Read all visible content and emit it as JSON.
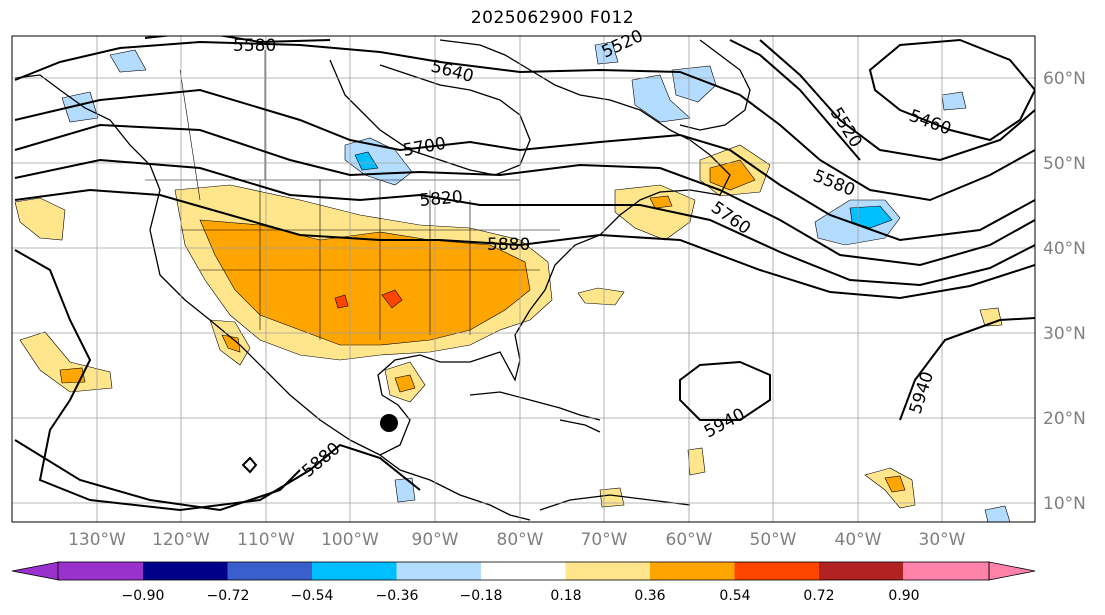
{
  "title": "2025062900 F012",
  "colors": {
    "grid": "#a0a0a0",
    "coast": "#000000",
    "contour": "#000000",
    "pos_1": "#ffe68c",
    "pos_2": "#ffa500",
    "pos_3": "#ff4500",
    "neg_1": "#b4dcff",
    "neg_2": "#00bfff"
  },
  "lon_labels": [
    "130°W",
    "120°W",
    "110°W",
    "100°W",
    "90°W",
    "80°W",
    "70°W",
    "60°W",
    "50°W",
    "40°W",
    "30°W"
  ],
  "lat_labels": [
    "60°N",
    "50°N",
    "40°N",
    "30°N",
    "20°N",
    "10°N"
  ],
  "contour_labels": [
    "5580",
    "5640",
    "5520",
    "5460",
    "5700",
    "5520",
    "5580",
    "5820",
    "5880",
    "5760",
    "5940",
    "5940",
    "5880"
  ],
  "colorbar": {
    "colors": [
      "#9932cc",
      "#00008b",
      "#3a5fcd",
      "#00bfff",
      "#b4dcff",
      "#ffffff",
      "#ffe68c",
      "#ffa500",
      "#ff4500",
      "#b22222",
      "#ff82ab"
    ],
    "ticks": [
      "−0.90",
      "−0.72",
      "−0.54",
      "−0.36",
      "−0.18",
      "0.18",
      "0.36",
      "0.54",
      "0.72",
      "0.90"
    ]
  }
}
